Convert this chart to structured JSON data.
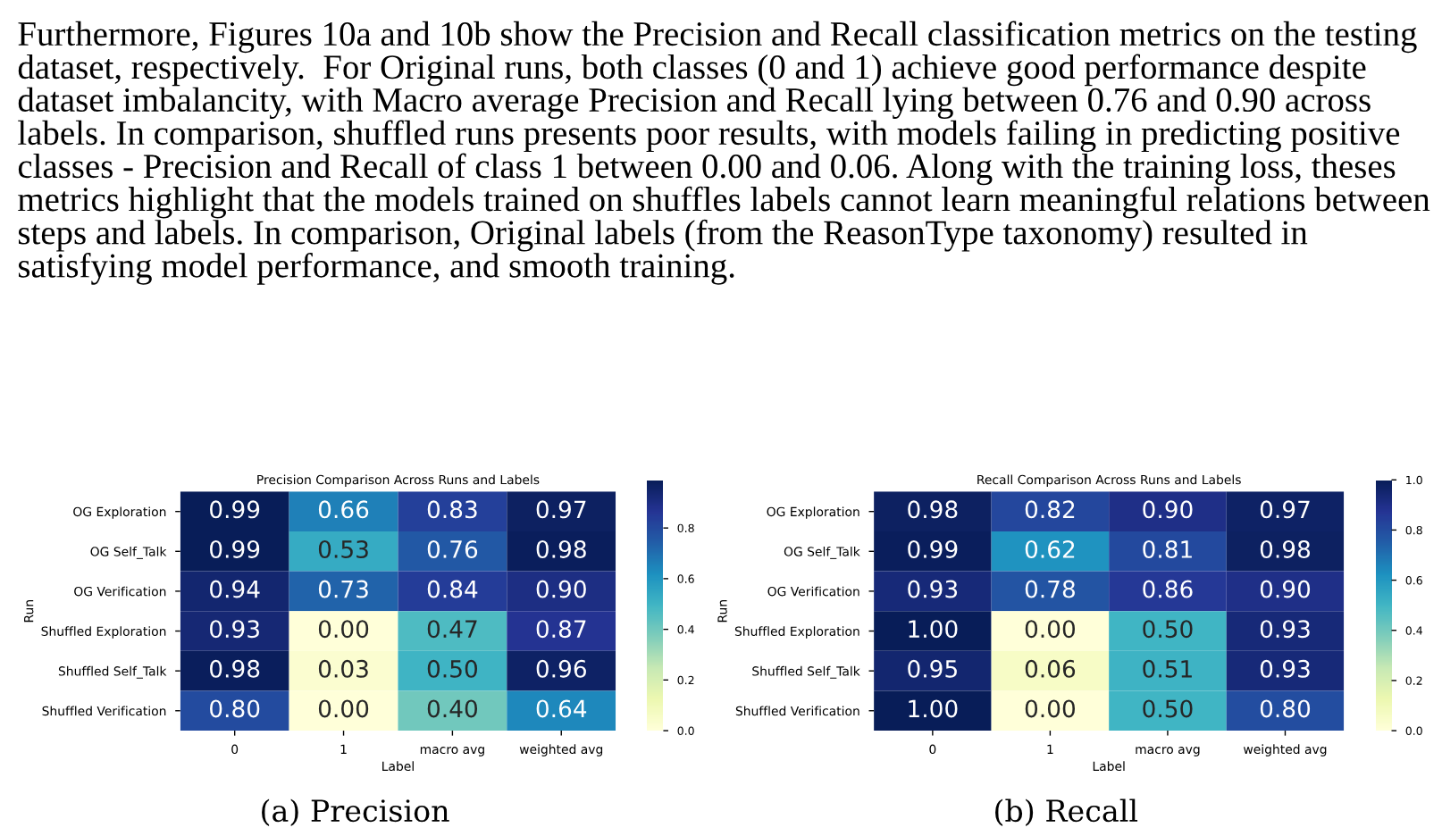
{
  "chart_data": [
    {
      "type": "heatmap",
      "title": "Precision Comparison Across Runs and Labels",
      "xlabel": "Label",
      "ylabel": "Run",
      "categories": [
        "0",
        "1",
        "macro avg",
        "weighted avg"
      ],
      "y_categories": [
        "OG Exploration",
        "OG Self_Talk",
        "OG Verification",
        "Shuffled Exploration",
        "Shuffled Self_Talk",
        "Shuffled Verification"
      ],
      "cells": [
        [
          0.99,
          0.66,
          0.83,
          0.97
        ],
        [
          0.99,
          0.53,
          0.76,
          0.98
        ],
        [
          0.94,
          0.73,
          0.84,
          0.9
        ],
        [
          0.93,
          0.0,
          0.47,
          0.87
        ],
        [
          0.98,
          0.03,
          0.5,
          0.96
        ],
        [
          0.8,
          0.0,
          0.4,
          0.64
        ]
      ],
      "cell_labels": [
        [
          "0.99",
          "0.66",
          "0.83",
          "0.97"
        ],
        [
          "0.99",
          "0.53",
          "0.76",
          "0.98"
        ],
        [
          "0.94",
          "0.73",
          "0.84",
          "0.90"
        ],
        [
          "0.93",
          "0.00",
          "0.47",
          "0.87"
        ],
        [
          "0.98",
          "0.03",
          "0.50",
          "0.96"
        ],
        [
          "0.80",
          "0.00",
          "0.40",
          "0.64"
        ]
      ],
      "clim": [
        0.0,
        0.99
      ],
      "cticks": [
        {
          "value": 0.0,
          "label": "0.0"
        },
        {
          "value": 0.2,
          "label": "0.2"
        },
        {
          "value": 0.4,
          "label": "0.4"
        },
        {
          "value": 0.6,
          "label": "0.6"
        },
        {
          "value": 0.8,
          "label": "0.8"
        }
      ],
      "annotations": [
        "Furthermore, Figures 10a and 10b show the Precision and Recall classification metrics on the testing dataset, respectively.  For Original runs, both classes (0 and 1) achieve good performance despite dataset imbalancity, with Macro average Precision and Recall lying between 0.76 and 0.90 across labels. In comparison, shuffled runs presents poor results, with models failing in predicting positive classes - Precision and Recall of class 1 between 0.00 and 0.06. Along with the training loss, theses metrics highlight that the models trained on shuffles labels cannot learn meaningful relations between steps and labels. In comparison, Original labels (from the ReasonType taxonomy) resulted in satisfying model performance, and smooth training.",
        "(a) Precision"
      ]
    },
    {
      "type": "heatmap",
      "title": "Recall Comparison Across Runs and Labels",
      "xlabel": "Label",
      "ylabel": "Run",
      "categories": [
        "0",
        "1",
        "macro avg",
        "weighted avg"
      ],
      "y_categories": [
        "OG Exploration",
        "OG Self_Talk",
        "OG Verification",
        "Shuffled Exploration",
        "Shuffled Self_Talk",
        "Shuffled Verification"
      ],
      "cells": [
        [
          0.98,
          0.82,
          0.9,
          0.97
        ],
        [
          0.99,
          0.62,
          0.81,
          0.98
        ],
        [
          0.93,
          0.78,
          0.86,
          0.9
        ],
        [
          1.0,
          0.0,
          0.5,
          0.93
        ],
        [
          0.95,
          0.06,
          0.51,
          0.93
        ],
        [
          1.0,
          0.0,
          0.5,
          0.8
        ]
      ],
      "cell_labels": [
        [
          "0.98",
          "0.82",
          "0.90",
          "0.97"
        ],
        [
          "0.99",
          "0.62",
          "0.81",
          "0.98"
        ],
        [
          "0.93",
          "0.78",
          "0.86",
          "0.90"
        ],
        [
          "1.00",
          "0.00",
          "0.50",
          "0.93"
        ],
        [
          "0.95",
          "0.06",
          "0.51",
          "0.93"
        ],
        [
          "1.00",
          "0.00",
          "0.50",
          "0.80"
        ]
      ],
      "clim": [
        0.0,
        1.0
      ],
      "cticks": [
        {
          "value": 0.0,
          "label": "0.0"
        },
        {
          "value": 0.2,
          "label": "0.2"
        },
        {
          "value": 0.4,
          "label": "0.4"
        },
        {
          "value": 0.6,
          "label": "0.6"
        },
        {
          "value": 0.8,
          "label": "0.8"
        },
        {
          "value": 1.0,
          "label": "1.0"
        }
      ],
      "annotations": [
        "(b) Recall"
      ]
    }
  ]
}
